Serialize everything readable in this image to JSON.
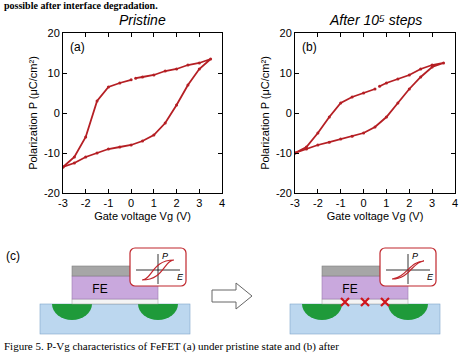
{
  "header": "possible after interface degradation.",
  "chart_data": [
    {
      "type": "line",
      "title": "Pristine",
      "annotations": [
        "(a)"
      ],
      "x_label": "Gate voltage Vg (V)",
      "y_label": "Polarization P (μC/cm²)",
      "xlim": [
        -3,
        4
      ],
      "xticks": [
        -3,
        -2,
        -1,
        0,
        1,
        2,
        3,
        4
      ],
      "ylim": [
        -20,
        20
      ],
      "yticks": [
        -20,
        -10,
        0,
        10,
        20
      ],
      "grid": false,
      "color": "#b51f24",
      "marker": "circle",
      "line_style": "solid",
      "x": [
        -3,
        -2.5,
        -2,
        -1.5,
        -1,
        -0.5,
        0,
        0.5,
        1,
        1.5,
        2,
        2.5,
        3,
        3.5,
        3,
        2.5,
        2,
        1.5,
        1,
        0.5,
        0.2,
        0.1,
        0,
        -0.5,
        -1,
        -1.5,
        -2,
        -2.5,
        -3
      ],
      "values": [
        -13.5,
        -12.5,
        -11,
        -10,
        -9,
        -8.5,
        -8,
        -7,
        -5.5,
        -2.5,
        2,
        7,
        11,
        13.5,
        12.5,
        12,
        11,
        10.5,
        9.5,
        9,
        8.7,
        null,
        8.3,
        7.5,
        6.5,
        3,
        -6,
        -11,
        -13.5
      ]
    },
    {
      "type": "line",
      "title": "After 10⁵ steps",
      "annotations": [
        "(b)"
      ],
      "x_label": "Gate voltage Vg (V)",
      "y_label": "Polarization P (μC/cm²)",
      "xlim": [
        -3,
        4
      ],
      "xticks": [
        -3,
        -2,
        -1,
        0,
        1,
        2,
        3,
        4
      ],
      "ylim": [
        -20,
        20
      ],
      "yticks": [
        -20,
        -10,
        0,
        10,
        20
      ],
      "grid": false,
      "color": "#b51f24",
      "marker": "circle",
      "line_style": "solid",
      "x": [
        -3,
        -2.5,
        -2,
        -1.5,
        -1,
        -0.5,
        0,
        0.5,
        1,
        1.5,
        2,
        2.5,
        3,
        3.5,
        3,
        2.5,
        2,
        1.5,
        1,
        0.7,
        0.6,
        0.5,
        0,
        -0.5,
        -1,
        -1.5,
        -2,
        -2.5,
        -3
      ],
      "values": [
        -10,
        -9,
        -8,
        -7.3,
        -6.5,
        -5.8,
        -5,
        -3.5,
        -1,
        2.5,
        6,
        9,
        11.5,
        12.5,
        12,
        11,
        9.5,
        8.5,
        7.5,
        6.7,
        null,
        6,
        5,
        4,
        2.5,
        -1,
        -5,
        -8.5,
        -10
      ]
    }
  ],
  "diagram": {
    "label": "(c)",
    "layer": "FE",
    "inset_x": "E",
    "inset_y": "P"
  },
  "caption": "Figure 5.  P-Vg characteristics of FeFET (a) under pristine state and (b) after"
}
